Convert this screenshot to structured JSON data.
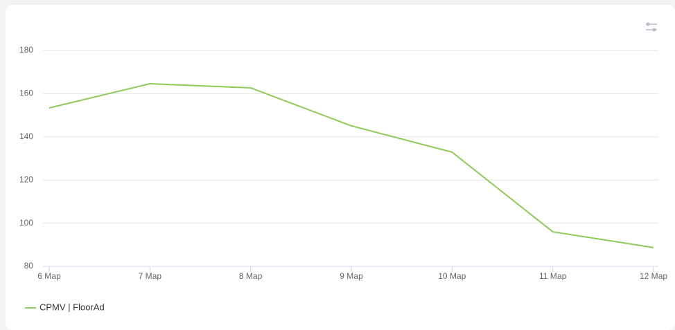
{
  "chart_data": {
    "type": "line",
    "categories": [
      "6 Мар",
      "7 Мар",
      "8 Мар",
      "9 Мар",
      "10 Мар",
      "11 Мар",
      "12 Мар"
    ],
    "series": [
      {
        "name": "CPMV | FloorAd",
        "color": "#8fc95a",
        "values": [
          153.4,
          164.6,
          162.7,
          145.1,
          132.9,
          96,
          88.7
        ]
      }
    ],
    "ylim": [
      80,
      180
    ],
    "yticks": [
      80,
      100,
      120,
      140,
      160,
      180
    ],
    "grid": true
  }
}
